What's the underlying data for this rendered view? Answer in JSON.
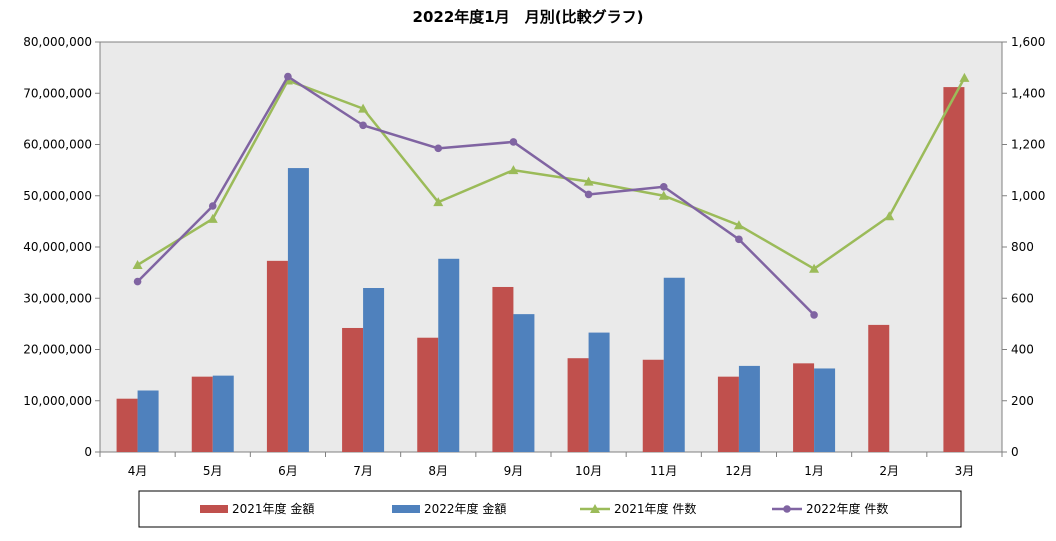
{
  "chart_data": {
    "type": "bar+line",
    "title": "2022年度1月　月別(比較グラフ)",
    "categories": [
      "4月",
      "5月",
      "6月",
      "7月",
      "8月",
      "9月",
      "10月",
      "11月",
      "12月",
      "1月",
      "2月",
      "3月"
    ],
    "left_axis": {
      "ylim": [
        0,
        80000000
      ],
      "ticks": [
        "0",
        "10,000,000",
        "20,000,000",
        "30,000,000",
        "40,000,000",
        "50,000,000",
        "60,000,000",
        "70,000,000",
        "80,000,000"
      ]
    },
    "right_axis": {
      "ylim": [
        0,
        1600
      ],
      "ticks": [
        "0",
        "200",
        "400",
        "600",
        "800",
        "1,000",
        "1,200",
        "1,400",
        "1,600"
      ]
    },
    "bar_series": [
      {
        "name": "2021年度 金額",
        "color": "#C0504D",
        "values": [
          10400000,
          14700000,
          37300000,
          24200000,
          22300000,
          32200000,
          18300000,
          18000000,
          14700000,
          17300000,
          24800000,
          71200000
        ]
      },
      {
        "name": "2022年度 金額",
        "color": "#4F81BD",
        "values": [
          12000000,
          14900000,
          55400000,
          32000000,
          37700000,
          26900000,
          23300000,
          34000000,
          16800000,
          16300000,
          null,
          null
        ]
      }
    ],
    "line_series": [
      {
        "name": "2021年度 件数",
        "color": "#9BBB59",
        "marker": "triangle",
        "values": [
          730,
          910,
          1450,
          1340,
          975,
          1100,
          1055,
          1000,
          885,
          715,
          920,
          1460
        ]
      },
      {
        "name": "2022年度 件数",
        "color": "#8064A2",
        "marker": "circle",
        "values": [
          665,
          960,
          1465,
          1275,
          1185,
          1210,
          1005,
          1035,
          830,
          535,
          null,
          null
        ]
      }
    ],
    "grid": false,
    "plot_background": "#EAEAEA",
    "legend_position": "bottom"
  }
}
